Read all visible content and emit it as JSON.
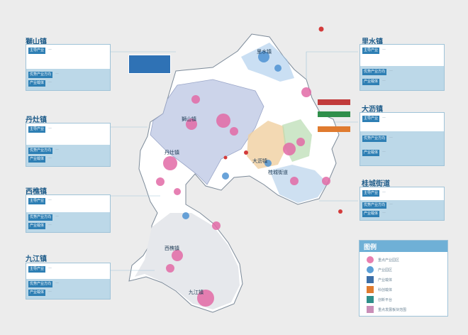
{
  "towns_panels": [
    {
      "id": "panel-zhangshan",
      "name": "獅山镇",
      "rows": [
        {
          "tag": "主导产业",
          "value": "—"
        },
        {
          "tag": "优势产业方向",
          "value": "—"
        },
        {
          "tag": "产业载体",
          "value": "—"
        }
      ]
    },
    {
      "id": "panel-danzao",
      "name": "丹灶镇",
      "rows": [
        {
          "tag": "主导产业",
          "value": "—"
        },
        {
          "tag": "优势产业方向",
          "value": "—"
        },
        {
          "tag": "产业载体",
          "value": "—"
        }
      ]
    },
    {
      "id": "panel-xiqiao",
      "name": "西樵镇",
      "rows": [
        {
          "tag": "主导产业",
          "value": "—"
        },
        {
          "tag": "优势产业方向",
          "value": "—"
        },
        {
          "tag": "产业载体",
          "value": "—"
        }
      ]
    },
    {
      "id": "panel-jiujiang",
      "name": "九江镇",
      "rows": [
        {
          "tag": "主导产业",
          "value": "—"
        },
        {
          "tag": "优势产业方向",
          "value": "—"
        },
        {
          "tag": "产业载体",
          "value": "—"
        }
      ]
    },
    {
      "id": "panel-lishui",
      "name": "里水镇",
      "rows": [
        {
          "tag": "主导产业",
          "value": "—"
        },
        {
          "tag": "优势产业方向",
          "value": "—"
        },
        {
          "tag": "产业载体",
          "value": "—"
        }
      ]
    },
    {
      "id": "panel-dali",
      "name": "大沥镇",
      "rows": [
        {
          "tag": "主导产业",
          "value": "—"
        },
        {
          "tag": "优势产业方向",
          "value": "—"
        },
        {
          "tag": "产业载体",
          "value": "—"
        }
      ]
    },
    {
      "id": "panel-guicheng",
      "name": "桂城街道",
      "rows": [
        {
          "tag": "主导产业",
          "value": "—"
        },
        {
          "tag": "优势产业方向",
          "value": "—"
        },
        {
          "tag": "产业载体",
          "value": "—"
        }
      ]
    }
  ],
  "map_labels": {
    "lishui": "里水镇",
    "shishan": "獅山镇",
    "danzao": "丹灶镇",
    "dali": "大沥镇",
    "guicheng": "桂城街道",
    "xiqiao": "西樵镇",
    "jiujiang": "九江镇"
  },
  "legend": {
    "title": "图例",
    "items": [
      {
        "label": "重点产业园区",
        "color": "#e87fb0"
      },
      {
        "label": "产业园区",
        "color": "#5b9fd6"
      },
      {
        "label": "产业载体",
        "color": "#3d6fa8"
      },
      {
        "label": "科创载体",
        "color": "#e07b2f"
      },
      {
        "label": "创新平台",
        "color": "#2f8f8a"
      },
      {
        "label": "重点发展板块范围",
        "color": "#c98fb8"
      }
    ]
  },
  "colors": {
    "accent": "#2e7fb4",
    "panel_band": "#bcd8e8",
    "region_pink": "#e26aa6",
    "region_blue": "#4f93d2"
  }
}
